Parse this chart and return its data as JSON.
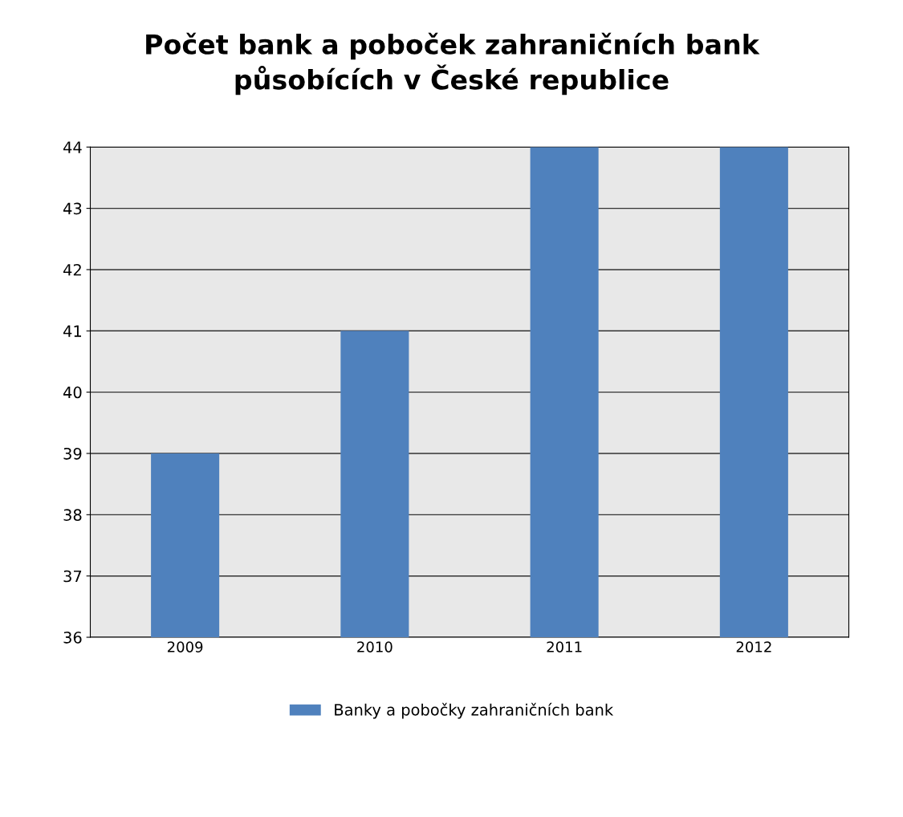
{
  "chart_data": {
    "type": "bar",
    "title": "Počet bank a poboček zahraničních bank\npůsobících v České republice",
    "categories": [
      "2009",
      "2010",
      "2011",
      "2012"
    ],
    "series": [
      {
        "name": "Banky a pobočky zahraničních bank",
        "color": "#4f81bd",
        "values": [
          39,
          41,
          44,
          44
        ]
      }
    ],
    "ylim": [
      36,
      44
    ],
    "yticks": [
      36,
      37,
      38,
      39,
      40,
      41,
      42,
      43,
      44
    ],
    "grid": "y",
    "legend": "bottom"
  }
}
